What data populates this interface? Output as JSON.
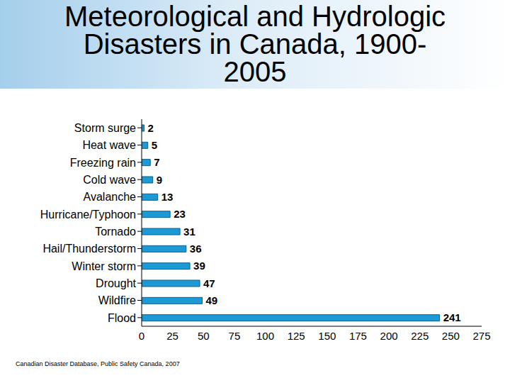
{
  "chart_data": {
    "type": "bar",
    "title": "Meteorological and Hydrologic Disasters in Canada, 1900-2005",
    "source": "Canadian Disaster Database, Public Safety Canada, 2007",
    "categories": [
      "Storm surge",
      "Heat wave",
      "Freezing rain",
      "Cold wave",
      "Avalanche",
      "Hurricane/Typhoon",
      "Tornado",
      "Hail/Thunderstorm",
      "Winter storm",
      "Drought",
      "Wildfire",
      "Flood"
    ],
    "values": [
      2,
      5,
      7,
      9,
      13,
      23,
      31,
      36,
      39,
      47,
      49,
      241
    ],
    "color": "#1b9ad6",
    "orientation": "horizontal",
    "xlim": [
      0,
      275
    ],
    "xticks": [
      0,
      25,
      50,
      75,
      100,
      125,
      150,
      175,
      200,
      225,
      250,
      275
    ],
    "grid": false,
    "data_labels": true
  }
}
